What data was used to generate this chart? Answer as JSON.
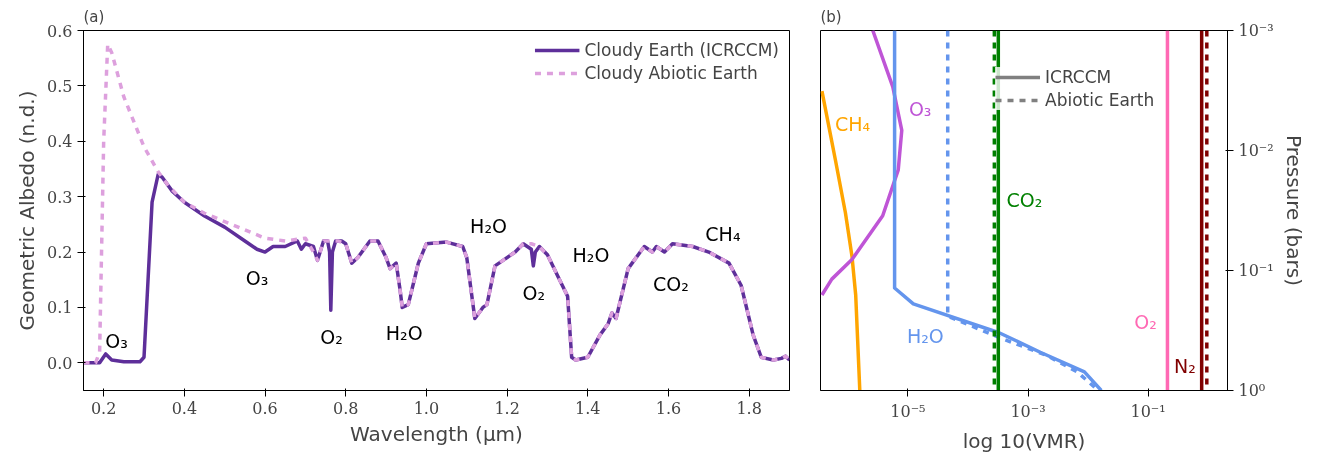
{
  "chart_data": [
    {
      "type": "line",
      "title": "(a)",
      "xlabel": "Wavelength (μm)",
      "ylabel": "Geometric Albedo (n.d.)",
      "xlim": [
        0.15,
        1.9
      ],
      "ylim": [
        -0.05,
        0.6
      ],
      "xticks": [
        0.2,
        0.4,
        0.6,
        0.8,
        {
          "value": 1,
          "label": "1.0"
        },
        1.2,
        1.4,
        1.6,
        1.8
      ],
      "yticks": [
        {
          "value": 0,
          "label": "0.0"
        },
        0.1,
        0.2,
        0.3,
        0.4,
        0.5,
        0.6
      ],
      "grid": false,
      "legend": "top right",
      "series": [
        {
          "name": "Cloudy Earth (ICRCCM)",
          "color": "#5e2f9a",
          "line_style": "solid",
          "x": [
            0.15,
            0.19,
            0.205,
            0.22,
            0.25,
            0.29,
            0.3,
            0.31,
            0.32,
            0.335,
            0.345,
            0.37,
            0.4,
            0.45,
            0.5,
            0.55,
            0.58,
            0.6,
            0.62,
            0.65,
            0.68,
            0.69,
            0.7,
            0.72,
            0.73,
            0.745,
            0.755,
            0.76,
            0.763,
            0.767,
            0.775,
            0.79,
            0.8,
            0.815,
            0.83,
            0.86,
            0.88,
            0.9,
            0.91,
            0.925,
            0.935,
            0.94,
            0.955,
            0.97,
            0.98,
            1.0,
            1.05,
            1.09,
            1.1,
            1.12,
            1.14,
            1.15,
            1.17,
            1.19,
            1.22,
            1.24,
            1.26,
            1.265,
            1.27,
            1.28,
            1.3,
            1.33,
            1.35,
            1.36,
            1.37,
            1.4,
            1.43,
            1.45,
            1.46,
            1.47,
            1.5,
            1.54,
            1.56,
            1.57,
            1.59,
            1.61,
            1.66,
            1.7,
            1.75,
            1.78,
            1.81,
            1.83,
            1.86,
            1.88,
            1.89,
            1.9
          ],
          "values": [
            0.0,
            0.0,
            0.016,
            0.005,
            0.002,
            0.002,
            0.01,
            0.15,
            0.29,
            0.34,
            0.335,
            0.31,
            0.29,
            0.265,
            0.245,
            0.22,
            0.205,
            0.2,
            0.21,
            0.21,
            0.22,
            0.205,
            0.215,
            0.21,
            0.185,
            0.22,
            0.22,
            0.2,
            0.095,
            0.2,
            0.22,
            0.22,
            0.215,
            0.18,
            0.19,
            0.22,
            0.22,
            0.19,
            0.17,
            0.18,
            0.13,
            0.1,
            0.105,
            0.15,
            0.18,
            0.215,
            0.218,
            0.21,
            0.19,
            0.08,
            0.1,
            0.105,
            0.175,
            0.185,
            0.2,
            0.215,
            0.205,
            0.175,
            0.2,
            0.21,
            0.195,
            0.15,
            0.12,
            0.01,
            0.005,
            0.01,
            0.05,
            0.07,
            0.09,
            0.08,
            0.17,
            0.21,
            0.2,
            0.21,
            0.2,
            0.215,
            0.21,
            0.2,
            0.18,
            0.14,
            0.05,
            0.01,
            0.005,
            0.008,
            0.012,
            0.005
          ]
        },
        {
          "name": "Cloudy Abiotic Earth",
          "color": "#dda0dd",
          "line_style": "dashed",
          "x": [
            0.15,
            0.18,
            0.19,
            0.2,
            0.21,
            0.22,
            0.25,
            0.3,
            0.335,
            0.36,
            0.4,
            0.45,
            0.5,
            0.55,
            0.6,
            0.65,
            0.7,
            0.72,
            0.73,
            0.745,
            0.78,
            0.8,
            0.815,
            0.83,
            0.86,
            0.88,
            0.9,
            0.91,
            0.925,
            0.935,
            0.94,
            0.955,
            0.97,
            0.98,
            1.0,
            1.05,
            1.09,
            1.1,
            1.12,
            1.14,
            1.15,
            1.17,
            1.19,
            1.22,
            1.24,
            1.26,
            1.28,
            1.3,
            1.33,
            1.35,
            1.36,
            1.37,
            1.4,
            1.43,
            1.45,
            1.46,
            1.47,
            1.5,
            1.54,
            1.56,
            1.57,
            1.59,
            1.61,
            1.66,
            1.7,
            1.75,
            1.78,
            1.81,
            1.83,
            1.86,
            1.88,
            1.89,
            1.9
          ],
          "values": [
            0.0,
            0.0,
            0.02,
            0.4,
            0.575,
            0.56,
            0.48,
            0.39,
            0.345,
            0.32,
            0.29,
            0.27,
            0.255,
            0.24,
            0.225,
            0.22,
            0.225,
            0.2,
            0.185,
            0.22,
            0.22,
            0.215,
            0.18,
            0.19,
            0.22,
            0.22,
            0.19,
            0.17,
            0.18,
            0.13,
            0.1,
            0.105,
            0.15,
            0.18,
            0.215,
            0.218,
            0.21,
            0.19,
            0.08,
            0.1,
            0.105,
            0.175,
            0.185,
            0.2,
            0.215,
            0.215,
            0.21,
            0.195,
            0.15,
            0.12,
            0.01,
            0.005,
            0.01,
            0.05,
            0.07,
            0.09,
            0.08,
            0.17,
            0.21,
            0.2,
            0.21,
            0.2,
            0.215,
            0.21,
            0.2,
            0.18,
            0.14,
            0.05,
            0.01,
            0.005,
            0.008,
            0.012,
            0.005
          ]
        }
      ],
      "annotations": [
        "O₃",
        "O₃",
        "O₂",
        "H₂O",
        "H₂O",
        "O₂",
        "H₂O",
        "CO₂",
        "CH₄"
      ]
    },
    {
      "type": "line",
      "title": "(b)",
      "xlabel": "log 10(VMR)",
      "ylabel": "Pressure (bars)",
      "log": "xy",
      "xlim": [
        3.5e-07,
        2.1
      ],
      "ylim": [
        1,
        0.001
      ],
      "xticks": [
        {
          "value": 1e-05,
          "label": "10⁻⁵"
        },
        {
          "value": 0.001,
          "label": "10⁻³"
        },
        {
          "value": 0.1,
          "label": "10⁻¹"
        }
      ],
      "yticks": [
        {
          "value": 0.001,
          "label": "10⁻³"
        },
        {
          "value": 0.01,
          "label": "10⁻²"
        },
        {
          "value": 0.1,
          "label": "10⁻¹"
        },
        {
          "value": 1,
          "label": "10⁰"
        }
      ],
      "grid": false,
      "legend": "top",
      "series": [
        {
          "name": "CH₄",
          "color": "#ffa500",
          "line_style": "solid",
          "x": [
            3.7e-07,
            6.2e-07,
            9.1e-07,
            1.17e-06,
            1.35e-06,
            1.58e-06
          ],
          "values": [
            0.0032,
            0.012,
            0.033,
            0.076,
            0.16,
            1.0
          ]
        },
        {
          "name": "O₃",
          "color": "#bf55d6",
          "line_style": "solid",
          "x": [
            2.6e-06,
            5.6e-06,
            7.9e-06,
            6.9e-06,
            3.8e-06,
            1.17e-06,
            5.4e-07,
            3.7e-07
          ],
          "values": [
            0.001,
            0.00295,
            0.0068,
            0.0145,
            0.035,
            0.081,
            0.118,
            0.16
          ]
        },
        {
          "name": "H₂O",
          "color": "#6495ed",
          "line_style": "solid",
          "x": [
            6e-06,
            6e-06,
            1.23e-05,
            0.00033,
            0.0016,
            0.0087,
            0.0166
          ],
          "values": [
            0.001,
            0.14,
            0.19,
            0.33,
            0.48,
            0.7,
            1.0
          ]
        },
        {
          "color": "#6495ed",
          "line_style": "dashed",
          "x": [
            4.6e-05,
            4.6e-05,
            4.6e-05,
            0.00037,
            0.00205,
            0.0066,
            0.0148
          ],
          "values": [
            0.001,
            0.2,
            0.24,
            0.37,
            0.51,
            0.7,
            1.0
          ]
        },
        {
          "name": "CO₂",
          "color": "#008000",
          "line_style": "solid",
          "x": [
            0.00032,
            0.00032
          ],
          "values": [
            0.001,
            1.0
          ]
        },
        {
          "color": "#008000",
          "line_style": "dashed",
          "x": [
            0.000275,
            0.000275
          ],
          "values": [
            0.001,
            1.0
          ]
        },
        {
          "name": "O₂",
          "color": "#ff69b4",
          "line_style": "solid",
          "x": [
            0.21,
            0.21
          ],
          "values": [
            0.001,
            1.0
          ]
        },
        {
          "name": "N₂",
          "color": "#800000",
          "line_style": "solid",
          "x": [
            0.78,
            0.78
          ],
          "values": [
            0.001,
            1.0
          ]
        },
        {
          "color": "#800000",
          "line_style": "dashed",
          "x": [
            0.95,
            0.95
          ],
          "values": [
            0.001,
            1.0
          ]
        },
        {
          "name": "ICRCCM",
          "color": "#808080",
          "line_style": "solid"
        },
        {
          "name": "Abiotic Earth",
          "color": "#808080",
          "line_style": "dashed"
        }
      ]
    }
  ]
}
